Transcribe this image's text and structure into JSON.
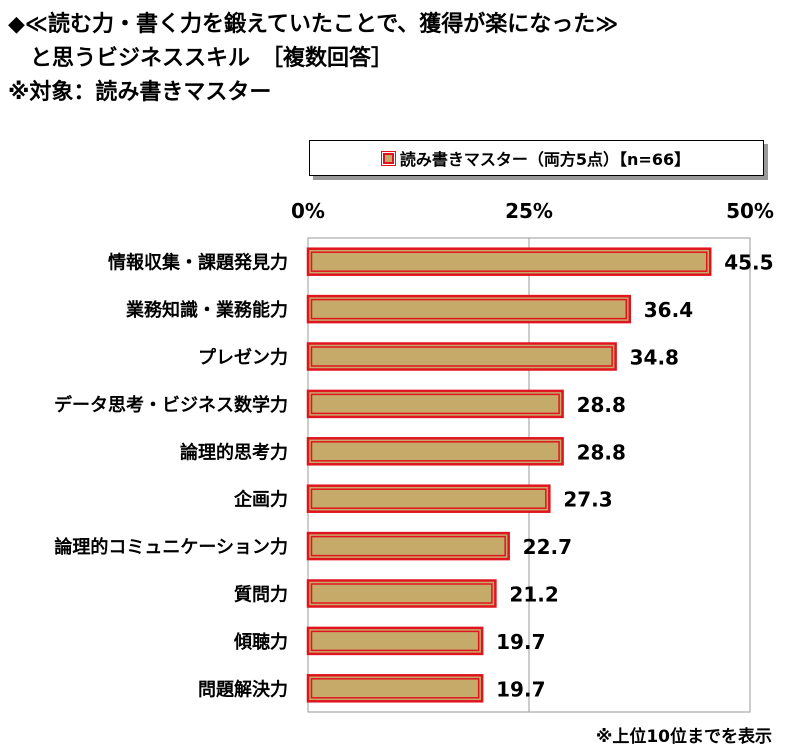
{
  "title_lines": [
    "◆≪読む力・書く力を鍛えていたことで、獲得が楽になった≫",
    "と思うビジネススキル　［複数回答］",
    "※対象：読み書きマスター"
  ],
  "legend_label": "読み書きマスター（両方5点）【n=66】",
  "footnote": "※上位10位までを表示",
  "colors": {
    "bar_fill": "#c6aa6a",
    "bar_border": "#e0141e"
  },
  "chart_data": {
    "type": "bar",
    "orientation": "horizontal",
    "title": "",
    "xlabel": "",
    "ylabel": "",
    "xlim": [
      0,
      50
    ],
    "ticks": [
      0,
      25,
      50
    ],
    "tick_labels": [
      "0%",
      "25%",
      "50%"
    ],
    "grid": true,
    "legend_position": "top",
    "categories": [
      "情報収集・課題発見力",
      "業務知識・業務能力",
      "プレゼン力",
      "データ思考・ビジネス数学力",
      "論理的思考力",
      "企画力",
      "論理的コミュニケーション力",
      "質問力",
      "傾聴力",
      "問題解決力"
    ],
    "series": [
      {
        "name": "読み書きマスター（両方5点）【n=66】",
        "values": [
          45.5,
          36.4,
          34.8,
          28.8,
          28.8,
          27.3,
          22.7,
          21.2,
          19.7,
          19.7
        ],
        "value_labels": [
          "45.5",
          "36.4",
          "34.8",
          "28.8",
          "28.8",
          "27.3",
          "22.7",
          "21.2",
          "19.7",
          "19.7"
        ]
      }
    ]
  }
}
